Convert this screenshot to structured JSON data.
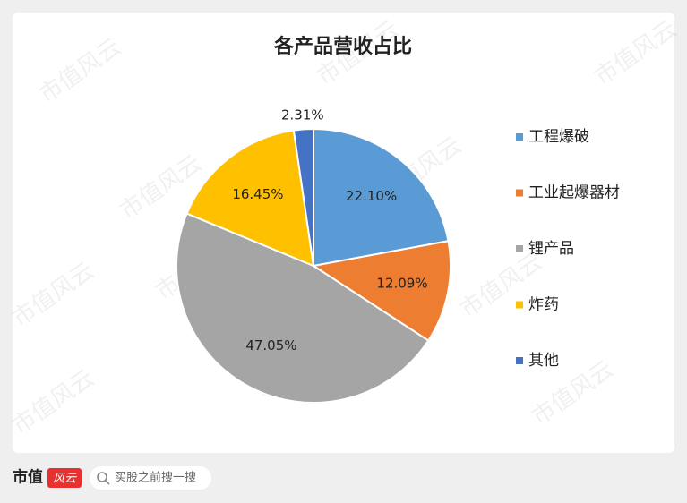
{
  "chart_data": {
    "type": "pie",
    "title": "各产品营收占比",
    "categories": [
      "工程爆破",
      "工业起爆器材",
      "锂产品",
      "炸药",
      "其他"
    ],
    "values": [
      22.1,
      12.09,
      47.05,
      16.45,
      2.31
    ],
    "value_labels": [
      "22.10%",
      "12.09%",
      "47.05%",
      "16.45%",
      "2.31%"
    ],
    "colors": [
      "#5b9bd5",
      "#ed7d31",
      "#a5a5a5",
      "#ffc000",
      "#4472c4"
    ],
    "legend": "right"
  },
  "watermark": "市值风云",
  "footer": {
    "logo_main": "市值",
    "logo_badge": "风云",
    "search_placeholder": "买股之前搜一搜"
  }
}
